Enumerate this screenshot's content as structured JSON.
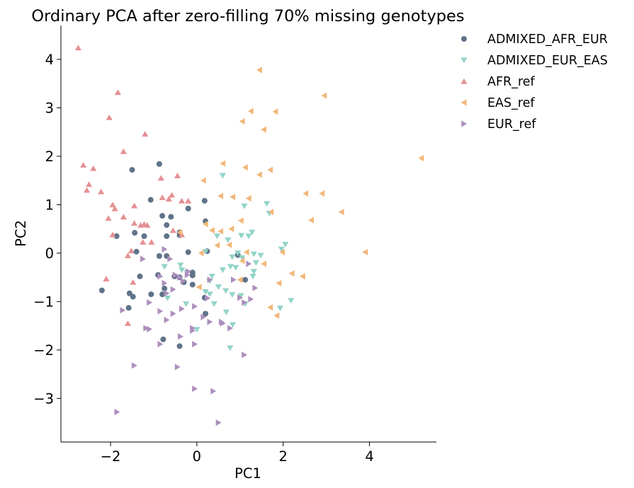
{
  "chart_data": {
    "type": "scatter",
    "title": "Ordinary PCA after zero-filling 70% missing genotypes",
    "xlabel": "PC1",
    "ylabel": "PC2",
    "xlim": [
      -3.15,
      5.55
    ],
    "ylim": [
      -3.9,
      4.7
    ],
    "xticks": [
      -2,
      0,
      2,
      4
    ],
    "yticks": [
      -3,
      -2,
      -1,
      0,
      1,
      2,
      3,
      4
    ],
    "xtick_labels": [
      "−2",
      "0",
      "2",
      "4"
    ],
    "ytick_labels": [
      "−3",
      "−2",
      "−1",
      "0",
      "1",
      "2",
      "3",
      "4"
    ],
    "grid": false,
    "legend_position": "outside top-right",
    "series": [
      {
        "name": "ADMIXED_AFR_EUR",
        "marker": "circle",
        "color": "#5f7389",
        "points": [
          [
            -1.5,
            1.72
          ],
          [
            -0.87,
            1.84
          ],
          [
            -1.07,
            1.1
          ],
          [
            0.18,
            1.08
          ],
          [
            -0.2,
            0.92
          ],
          [
            -0.6,
            0.75
          ],
          [
            -0.8,
            0.77
          ],
          [
            -0.7,
            0.58
          ],
          [
            0.2,
            0.66
          ],
          [
            -1.44,
            0.42
          ],
          [
            -1.22,
            0.35
          ],
          [
            -0.7,
            0.35
          ],
          [
            -0.4,
            0.37
          ],
          [
            -0.4,
            0.43
          ],
          [
            -1.86,
            0.35
          ],
          [
            -1.4,
            0.03
          ],
          [
            -0.87,
            -0.06
          ],
          [
            -0.7,
            -0.06
          ],
          [
            -0.2,
            0.02
          ],
          [
            0.24,
            0.04
          ],
          [
            -0.9,
            -0.45
          ],
          [
            -1.32,
            -0.48
          ],
          [
            -0.52,
            -0.48
          ],
          [
            -0.4,
            -0.5
          ],
          [
            -0.1,
            -0.4
          ],
          [
            -0.1,
            -0.46
          ],
          [
            -0.3,
            -0.6
          ],
          [
            -1.06,
            -0.85
          ],
          [
            -0.75,
            -0.73
          ],
          [
            -0.1,
            -0.65
          ],
          [
            -0.8,
            -0.85
          ],
          [
            -2.2,
            -0.77
          ],
          [
            -1.56,
            -0.83
          ],
          [
            -1.48,
            -0.9
          ],
          [
            -1.58,
            -1.13
          ],
          [
            0.2,
            -1.25
          ],
          [
            -0.78,
            -1.78
          ],
          [
            -0.4,
            -1.92
          ],
          [
            0.18,
            -0.92
          ],
          [
            1.12,
            -0.55
          ],
          [
            0.95,
            -0.04
          ]
        ]
      },
      {
        "name": "ADMIXED_EUR_EAS",
        "marker": "triangle-down",
        "color": "#92d3c8",
        "points": [
          [
            0.6,
            1.6
          ],
          [
            1.1,
            0.97
          ],
          [
            1.62,
            1.02
          ],
          [
            1.68,
            0.82
          ],
          [
            1.28,
            0.43
          ],
          [
            1.03,
            0.36
          ],
          [
            1.2,
            0.35
          ],
          [
            2.05,
            0.18
          ],
          [
            1.96,
            0.08
          ],
          [
            0.47,
            0.35
          ],
          [
            0.72,
            0.27
          ],
          [
            0.2,
            0.03
          ],
          [
            0.95,
            0.0
          ],
          [
            0.82,
            -0.08
          ],
          [
            1.05,
            -0.1
          ],
          [
            1.32,
            -0.02
          ],
          [
            1.48,
            -0.05
          ],
          [
            1.37,
            -0.2
          ],
          [
            1.32,
            -0.38
          ],
          [
            1.3,
            -0.48
          ],
          [
            0.9,
            -0.3
          ],
          [
            0.78,
            -0.28
          ],
          [
            0.6,
            -0.35
          ],
          [
            -0.75,
            -0.28
          ],
          [
            -0.38,
            -0.25
          ],
          [
            -0.35,
            -0.35
          ],
          [
            -0.23,
            -0.4
          ],
          [
            0.35,
            -0.48
          ],
          [
            0.3,
            -0.58
          ],
          [
            0.5,
            -0.7
          ],
          [
            0.2,
            -0.8
          ],
          [
            0.3,
            -0.85
          ],
          [
            0.67,
            -0.78
          ],
          [
            0.82,
            -0.86
          ],
          [
            1.02,
            -0.88
          ],
          [
            1.12,
            -1.05
          ],
          [
            2.18,
            -0.98
          ],
          [
            1.93,
            -1.14
          ],
          [
            -0.68,
            -0.93
          ],
          [
            -0.25,
            -1.05
          ],
          [
            0.4,
            -1.05
          ],
          [
            0.68,
            -1.22
          ],
          [
            0.83,
            -1.48
          ],
          [
            0.0,
            -1.58
          ],
          [
            0.77,
            -1.96
          ]
        ]
      },
      {
        "name": "AFR_ref",
        "marker": "triangle-up",
        "color": "#e59094",
        "points": [
          [
            -2.75,
            4.24
          ],
          [
            -1.83,
            3.32
          ],
          [
            -2.03,
            2.8
          ],
          [
            -1.2,
            2.46
          ],
          [
            -1.7,
            2.1
          ],
          [
            -2.63,
            1.82
          ],
          [
            -2.5,
            1.42
          ],
          [
            -2.22,
            1.27
          ],
          [
            -2.55,
            1.3
          ],
          [
            -2.4,
            1.75
          ],
          [
            -1.95,
            1.0
          ],
          [
            -1.45,
            0.98
          ],
          [
            -1.9,
            0.92
          ],
          [
            -2.05,
            0.72
          ],
          [
            -1.7,
            0.75
          ],
          [
            -0.8,
            1.15
          ],
          [
            -0.65,
            1.12
          ],
          [
            -0.58,
            1.2
          ],
          [
            -0.35,
            1.08
          ],
          [
            -0.2,
            1.08
          ],
          [
            -0.83,
            1.55
          ],
          [
            -0.45,
            1.6
          ],
          [
            -1.22,
            0.6
          ],
          [
            -1.15,
            0.58
          ],
          [
            -1.3,
            0.58
          ],
          [
            -1.45,
            0.62
          ],
          [
            -1.05,
            0.23
          ],
          [
            -0.55,
            0.47
          ],
          [
            -0.35,
            0.38
          ],
          [
            -1.25,
            0.23
          ],
          [
            -1.95,
            0.38
          ],
          [
            -1.6,
            -0.05
          ],
          [
            -1.52,
            0.05
          ],
          [
            -2.1,
            -0.53
          ],
          [
            -1.48,
            -0.6
          ],
          [
            -1.6,
            -1.45
          ]
        ]
      },
      {
        "name": "EAS_ref",
        "marker": "triangle-left",
        "color": "#f2b778",
        "points": [
          [
            1.45,
            3.78
          ],
          [
            2.95,
            3.25
          ],
          [
            1.25,
            2.93
          ],
          [
            1.82,
            2.92
          ],
          [
            1.05,
            2.72
          ],
          [
            1.55,
            2.55
          ],
          [
            5.2,
            1.96
          ],
          [
            0.6,
            1.85
          ],
          [
            1.12,
            1.77
          ],
          [
            1.7,
            1.72
          ],
          [
            1.45,
            1.62
          ],
          [
            0.15,
            1.5
          ],
          [
            0.55,
            1.18
          ],
          [
            0.83,
            1.16
          ],
          [
            1.2,
            1.13
          ],
          [
            2.52,
            1.23
          ],
          [
            2.9,
            1.23
          ],
          [
            1.02,
            0.67
          ],
          [
            1.72,
            0.85
          ],
          [
            3.35,
            0.85
          ],
          [
            2.65,
            0.68
          ],
          [
            0.2,
            0.6
          ],
          [
            0.35,
            0.47
          ],
          [
            0.55,
            0.45
          ],
          [
            0.8,
            0.5
          ],
          [
            0.47,
            0.16
          ],
          [
            0.75,
            0.17
          ],
          [
            1.15,
            0.02
          ],
          [
            1.98,
            0.02
          ],
          [
            3.9,
            0.02
          ],
          [
            0.1,
            0.0
          ],
          [
            1.05,
            -0.16
          ],
          [
            1.55,
            -0.22
          ],
          [
            2.2,
            -0.42
          ],
          [
            2.45,
            -0.48
          ],
          [
            1.9,
            -0.62
          ],
          [
            1.0,
            -0.55
          ],
          [
            0.05,
            -0.7
          ],
          [
            1.7,
            -1.12
          ],
          [
            1.85,
            -1.29
          ],
          [
            -0.4,
            0.43
          ]
        ]
      },
      {
        "name": "EUR_ref",
        "marker": "triangle-right",
        "color": "#ad8fbd",
        "points": [
          [
            -0.75,
            0.08
          ],
          [
            -1.25,
            -0.12
          ],
          [
            -0.62,
            -0.12
          ],
          [
            -0.5,
            -0.45
          ],
          [
            -0.4,
            -0.5
          ],
          [
            -0.22,
            -0.45
          ],
          [
            -0.32,
            -0.58
          ],
          [
            0.3,
            -0.55
          ],
          [
            -0.2,
            -0.38
          ],
          [
            -0.85,
            -0.48
          ],
          [
            -0.55,
            -0.75
          ],
          [
            -0.7,
            -0.83
          ],
          [
            -0.75,
            -0.62
          ],
          [
            0.25,
            -0.93
          ],
          [
            0.85,
            -0.55
          ],
          [
            1.35,
            -0.72
          ],
          [
            1.2,
            -0.22
          ],
          [
            1.0,
            -0.92
          ],
          [
            1.1,
            -1.02
          ],
          [
            1.25,
            -0.95
          ],
          [
            -1.72,
            -1.18
          ],
          [
            -1.1,
            -1.02
          ],
          [
            -0.55,
            -1.25
          ],
          [
            -0.7,
            -1.38
          ],
          [
            -0.85,
            -1.2
          ],
          [
            -0.35,
            -1.15
          ],
          [
            -0.05,
            -1.1
          ],
          [
            0.15,
            -1.32
          ],
          [
            0.3,
            -1.42
          ],
          [
            0.57,
            -1.42
          ],
          [
            0.77,
            -1.55
          ],
          [
            0.6,
            -1.45
          ],
          [
            -0.1,
            -1.55
          ],
          [
            -1.1,
            -1.57
          ],
          [
            -1.18,
            -1.55
          ],
          [
            -0.38,
            -1.72
          ],
          [
            -0.05,
            -1.88
          ],
          [
            -0.85,
            -1.88
          ],
          [
            -0.1,
            -1.6
          ],
          [
            1.1,
            -2.1
          ],
          [
            -1.45,
            -2.32
          ],
          [
            -0.45,
            -2.35
          ],
          [
            -1.85,
            -3.28
          ],
          [
            -0.05,
            -2.8
          ],
          [
            0.38,
            -2.85
          ],
          [
            0.5,
            -3.5
          ]
        ]
      }
    ]
  }
}
